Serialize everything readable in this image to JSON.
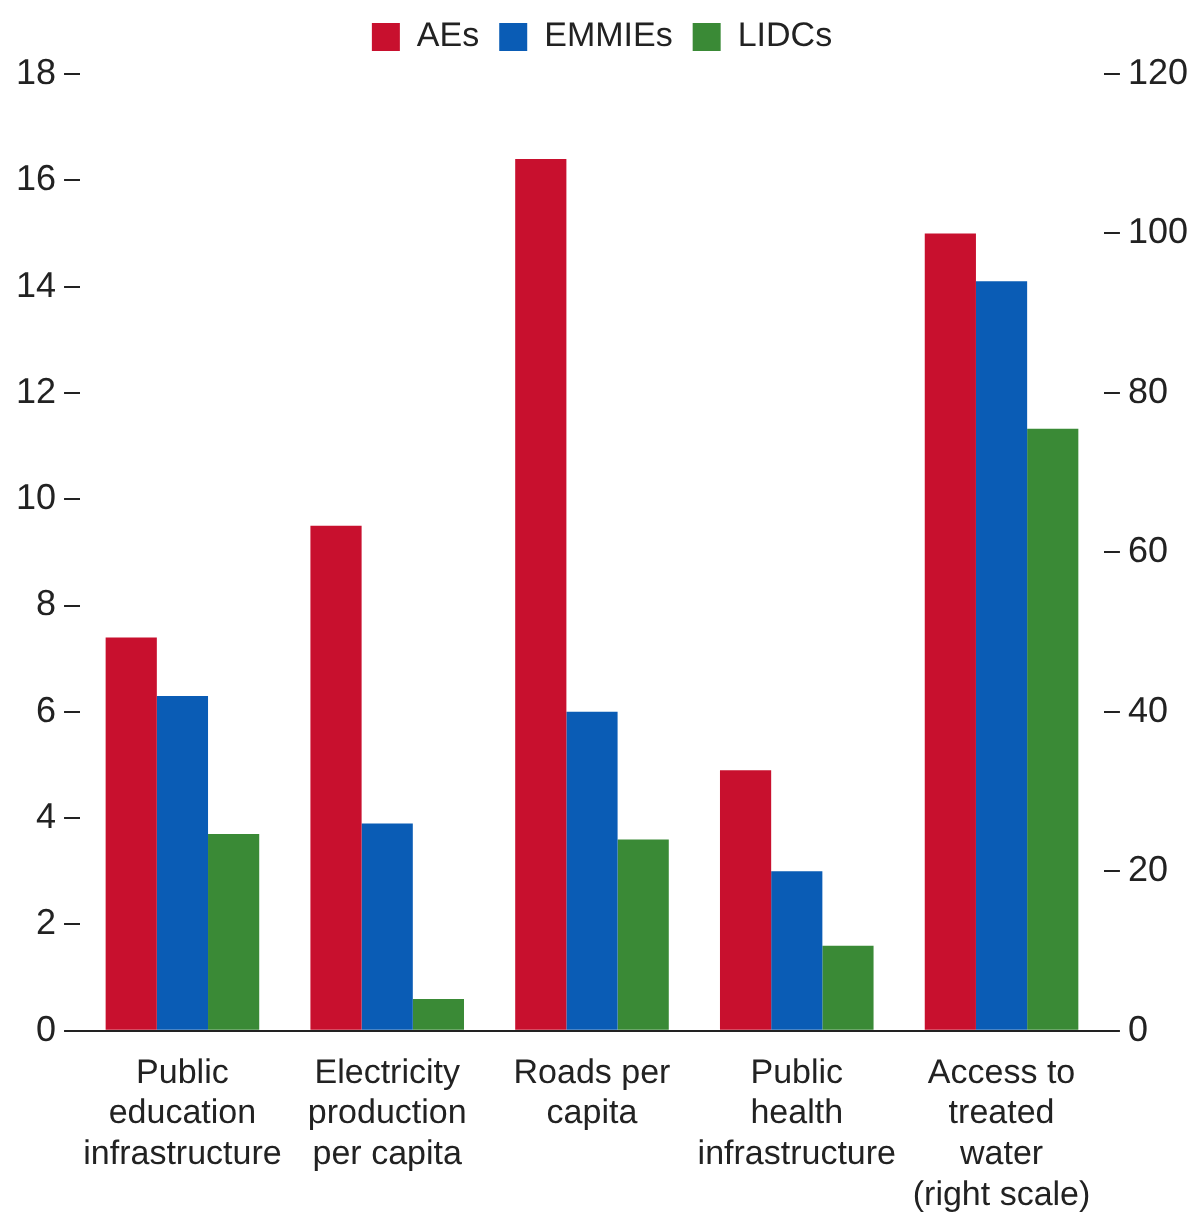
{
  "chart_data": {
    "type": "bar",
    "categories": [
      "Public education infrastructure",
      "Electricity production per capita",
      "Roads per capita",
      "Public health infrastructure",
      "Access to treated water (right scale)"
    ],
    "series": [
      {
        "name": "AEs",
        "color": "#c8102e",
        "values": [
          7.4,
          9.5,
          16.4,
          4.9,
          null
        ]
      },
      {
        "name": "EMMIEs",
        "color": "#0a5cb5",
        "values": [
          6.3,
          3.9,
          6.0,
          3.0,
          null
        ]
      },
      {
        "name": "LIDCs",
        "color": "#3a8a36",
        "values": [
          3.7,
          0.6,
          3.6,
          1.6,
          null
        ]
      },
      {
        "color": "#c8102e",
        "axis": "y2",
        "values": [
          null,
          null,
          null,
          null,
          100
        ]
      },
      {
        "color": "#0a5cb5",
        "axis": "y2",
        "values": [
          null,
          null,
          null,
          null,
          94
        ]
      },
      {
        "color": "#3a8a36",
        "axis": "y2",
        "values": [
          null,
          null,
          null,
          null,
          75.5
        ]
      }
    ],
    "ylim": [
      0,
      18
    ],
    "yticks": [
      0,
      2,
      4,
      6,
      8,
      10,
      12,
      14,
      16,
      18
    ],
    "y2lim": [
      0,
      120
    ],
    "y2ticks": [
      0,
      20,
      40,
      60,
      80,
      100,
      120
    ],
    "grid": false,
    "legend": "top"
  }
}
